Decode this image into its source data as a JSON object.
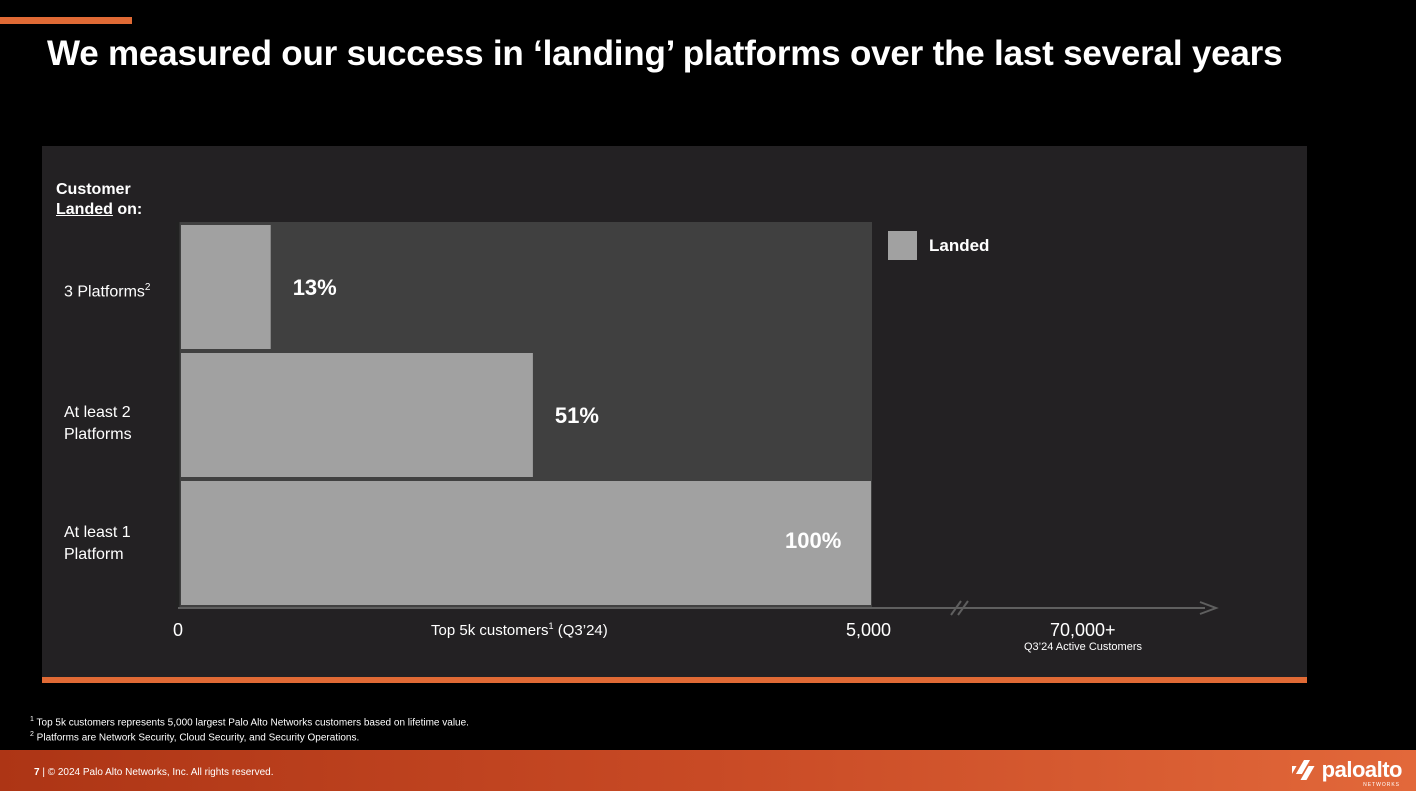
{
  "title": "We measured our success in ‘landing’ platforms over the last several years",
  "y_title": {
    "line1": "Customer",
    "line2_underlined": "Landed",
    "line2_rest": " on:"
  },
  "categories": [
    {
      "label_main": "3 Platforms",
      "label_sup": "2",
      "label_line2": ""
    },
    {
      "label_main": "At least 2",
      "label_sup": "",
      "label_line2": "Platforms"
    },
    {
      "label_main": "At least 1",
      "label_sup": "",
      "label_line2": "Platform"
    }
  ],
  "chart_data": {
    "type": "bar",
    "orientation": "horizontal",
    "categories": [
      "3 Platforms",
      "At least 2 Platforms",
      "At least 1 Platform"
    ],
    "series": [
      {
        "name": "Landed",
        "values": [
          13,
          51,
          100
        ]
      }
    ],
    "data_labels": [
      "13%",
      "51%",
      "100%"
    ],
    "x_ticks": [
      "0",
      "5,000",
      "70,000+"
    ],
    "xlabel": "Top 5k customers",
    "xlabel_sup": "1",
    "xlabel_rest": " (Q3’24)",
    "x_note": "Q3’24 Active Customers",
    "xlim": [
      0,
      100
    ],
    "legend": "top-right",
    "grid": false
  },
  "footnotes": [
    {
      "sup": "1",
      "text": " Top 5k customers represents 5,000 largest Palo Alto Networks customers based on lifetime value."
    },
    {
      "sup": "2",
      "text": " Platforms are Network Security, Cloud Security, and Security Operations."
    }
  ],
  "footer": {
    "page": "7",
    "sep": " | ",
    "copyright": "© 2024 Palo Alto Networks, Inc. All rights reserved.",
    "logo": "paloalto",
    "logo_sub": "NETWORKS"
  },
  "colors": {
    "accent": "#e06a35",
    "bar": "#a1a1a1",
    "plot_bg": "#404040",
    "panel_bg": "#232123"
  }
}
